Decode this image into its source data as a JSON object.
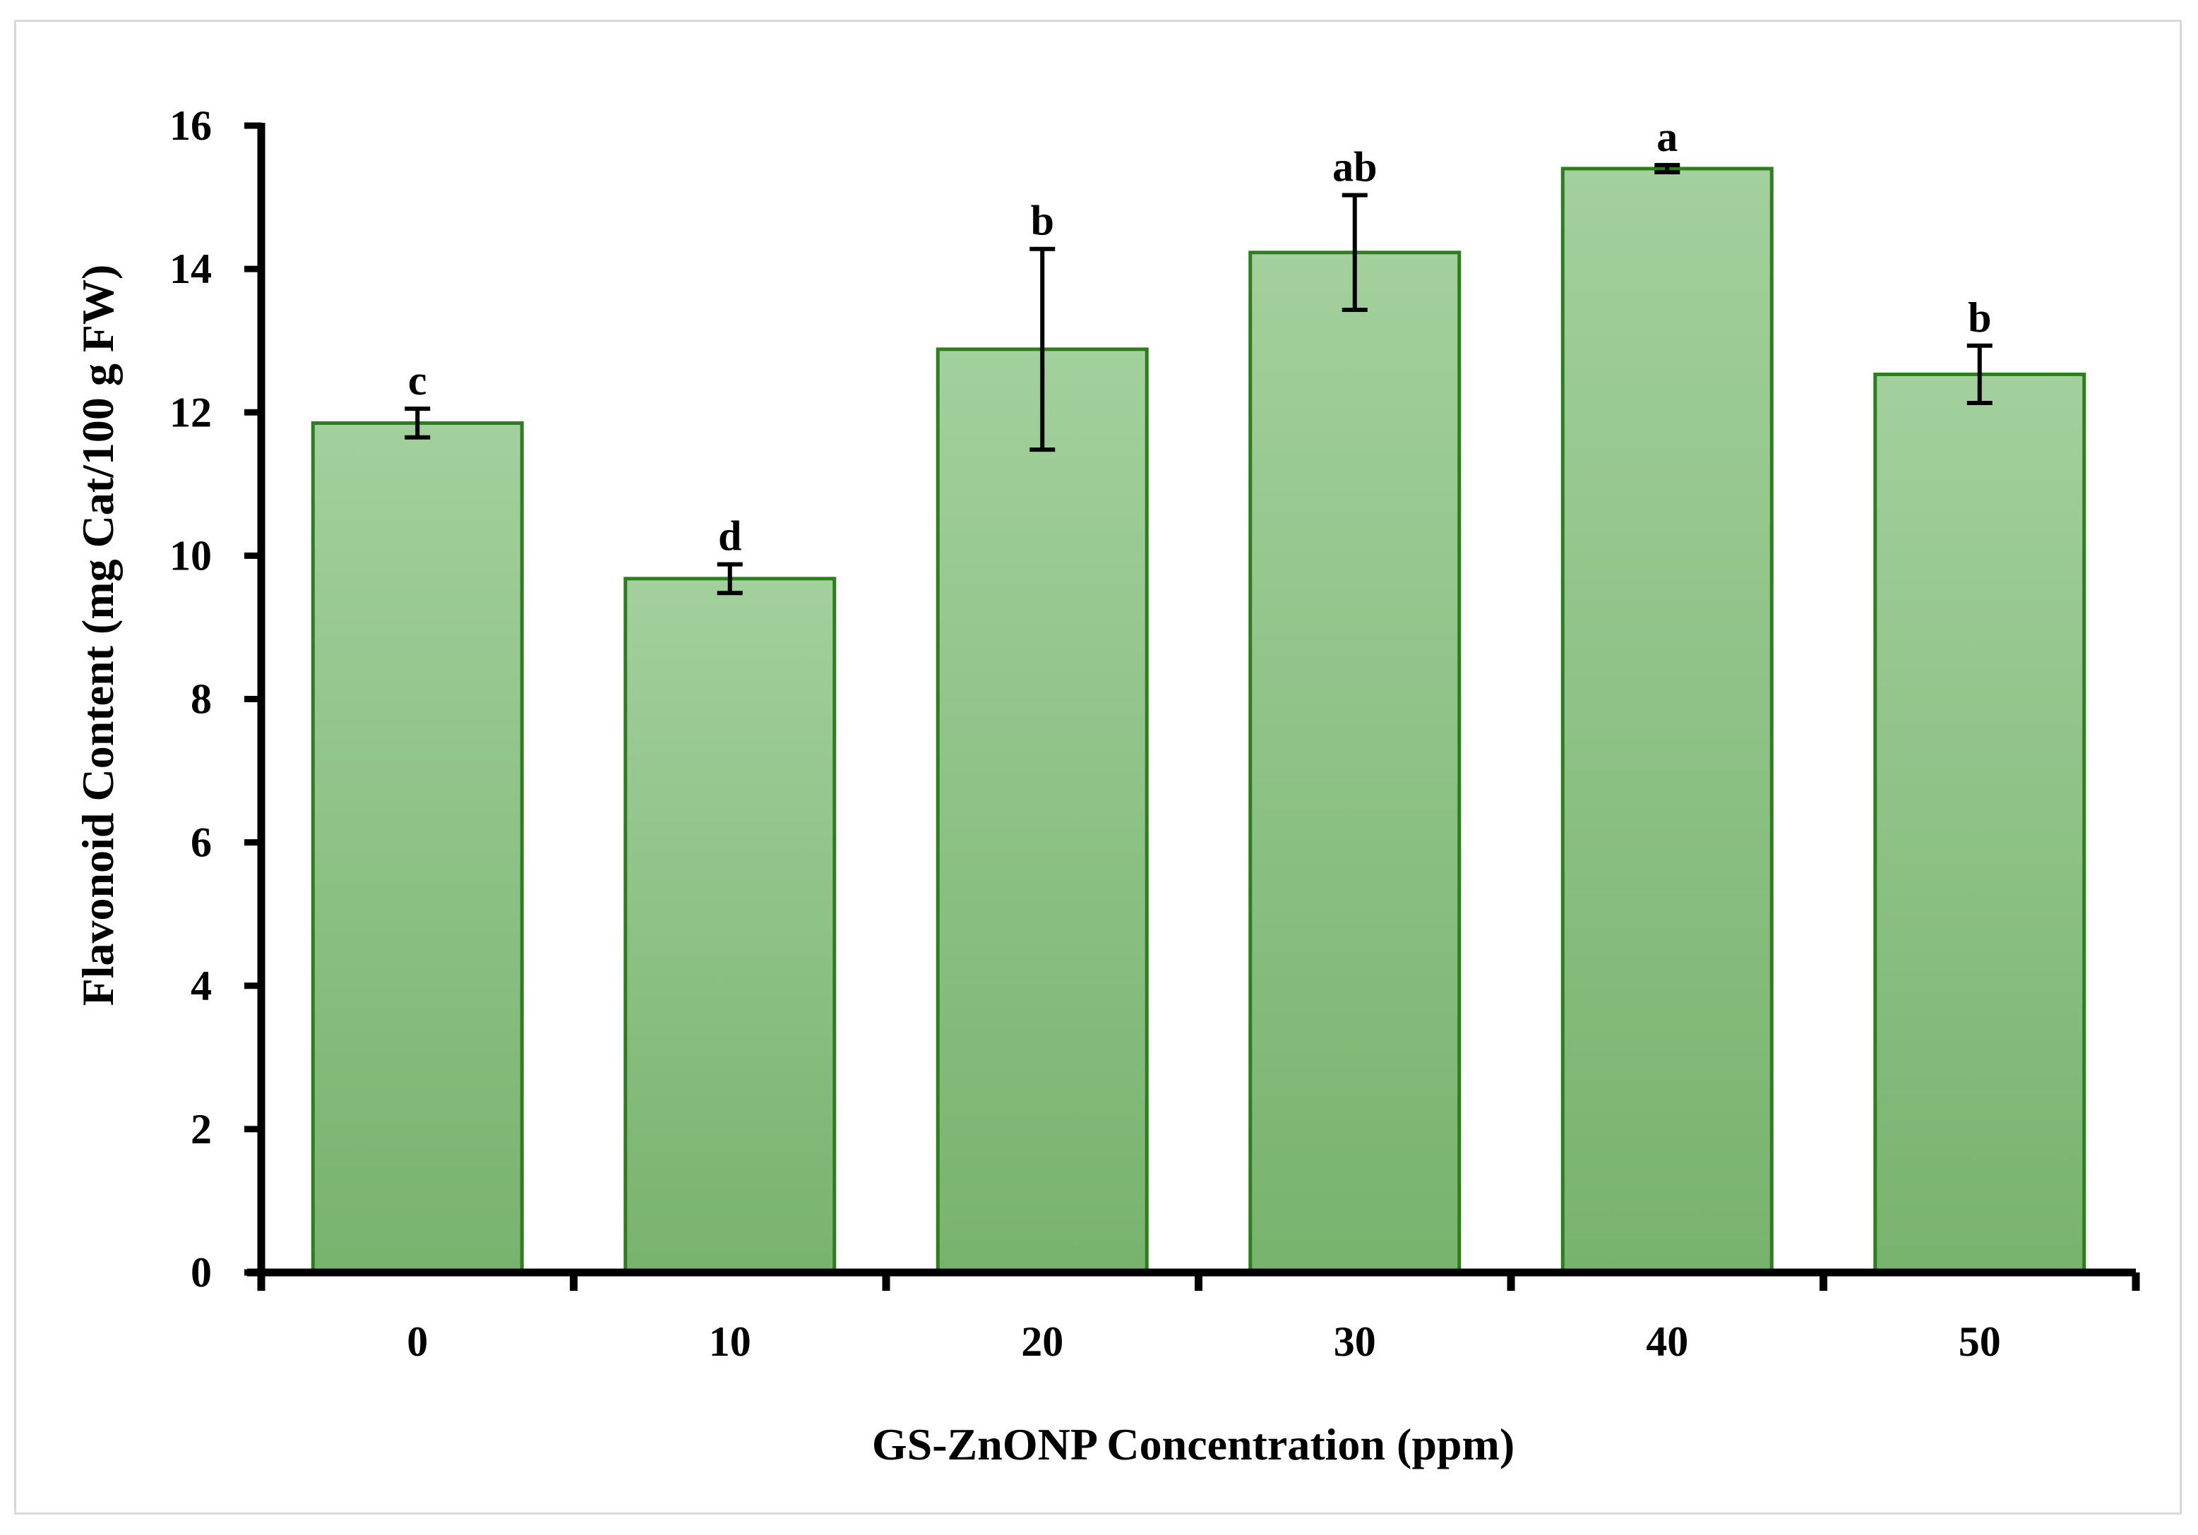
{
  "chart_data": {
    "type": "bar",
    "title": "",
    "xlabel": "GS-ZnONP Concentration (ppm)",
    "ylabel": "Flavonoid Content (mg Cat/100 g FW)",
    "categories": [
      "0",
      "10",
      "20",
      "30",
      "40",
      "50"
    ],
    "values": [
      11.85,
      9.68,
      12.88,
      14.23,
      15.4,
      12.53
    ],
    "error": [
      0.2,
      0.2,
      1.4,
      0.8,
      0.05,
      0.4
    ],
    "significance_letters": [
      "c",
      "d",
      "b",
      "ab",
      "a",
      "b"
    ],
    "ylim": [
      0,
      16
    ],
    "yticks": [
      0,
      2,
      4,
      6,
      8,
      10,
      12,
      14,
      16
    ],
    "grid": false,
    "legend": "none",
    "colors": {
      "bar_top": "#a3d09d",
      "bar_bottom": "#78b36e",
      "bar_edge": "#2e7d1f",
      "axis": "#000000",
      "error_bar": "#000000"
    }
  }
}
